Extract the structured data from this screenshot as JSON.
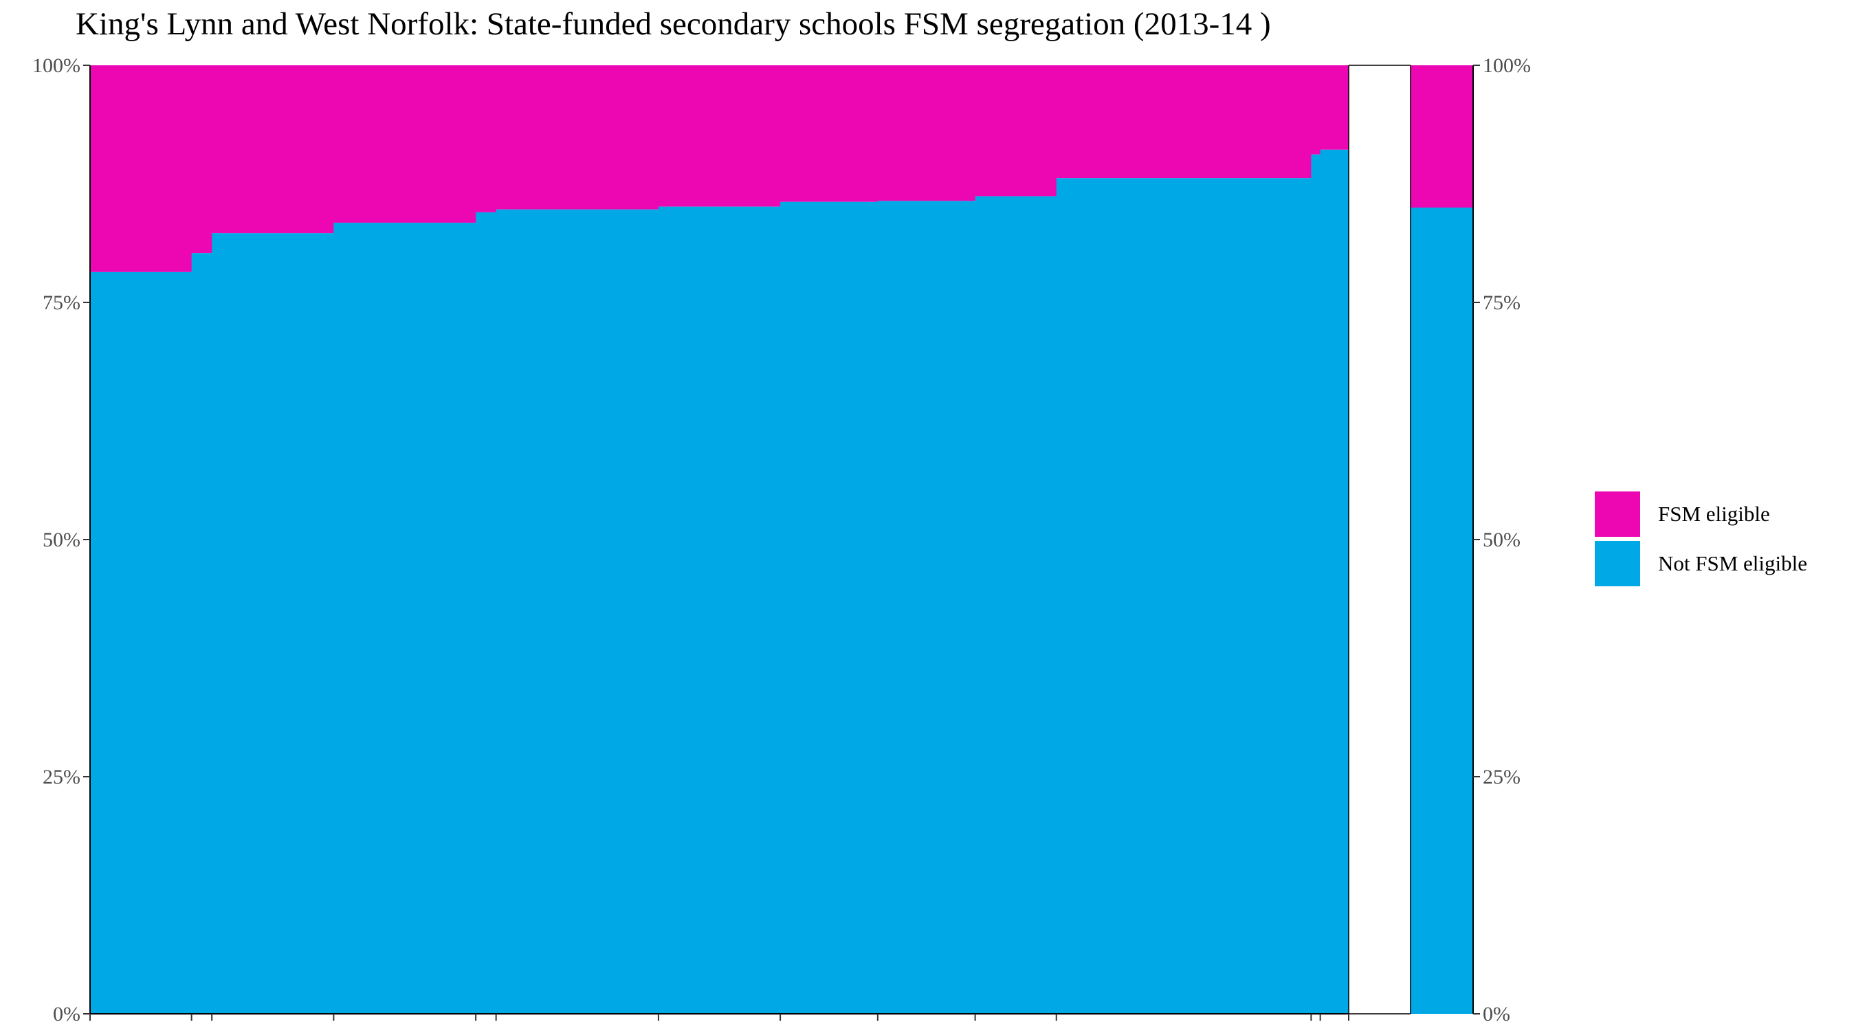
{
  "chart_data": {
    "type": "bar",
    "title": "King's Lynn and West Norfolk: State-funded secondary schools FSM segregation (2013-14 )",
    "xlabel": "",
    "ylabel": "",
    "ylim": [
      0,
      1
    ],
    "y_ticks": [
      "0%",
      "25%",
      "50%",
      "75%",
      "100%"
    ],
    "y_tick_values": [
      0,
      0.25,
      0.5,
      0.75,
      1.0
    ],
    "variable_width": true,
    "colors": {
      "FSM eligible": "#EC07B3",
      "Not FSM eligible": "#00A8E6"
    },
    "legend": {
      "position": "right",
      "entries": [
        "FSM eligible",
        "Not FSM eligible"
      ]
    },
    "schools": {
      "x_range": [
        0,
        124
      ],
      "bars": [
        {
          "start": 0,
          "end": 10,
          "not_fsm": 0.782
        },
        {
          "start": 10,
          "end": 12,
          "not_fsm": 0.802
        },
        {
          "start": 12,
          "end": 24,
          "not_fsm": 0.823
        },
        {
          "start": 24,
          "end": 38,
          "not_fsm": 0.834
        },
        {
          "start": 38,
          "end": 40,
          "not_fsm": 0.845
        },
        {
          "start": 40,
          "end": 56,
          "not_fsm": 0.848
        },
        {
          "start": 56,
          "end": 68,
          "not_fsm": 0.851
        },
        {
          "start": 68,
          "end": 77.6,
          "not_fsm": 0.856
        },
        {
          "start": 77.6,
          "end": 87.2,
          "not_fsm": 0.857
        },
        {
          "start": 87.2,
          "end": 95.2,
          "not_fsm": 0.862
        },
        {
          "start": 95.2,
          "end": 120.3,
          "not_fsm": 0.881
        },
        {
          "start": 120.3,
          "end": 121.2,
          "not_fsm": 0.906
        },
        {
          "start": 121.2,
          "end": 124,
          "not_fsm": 0.911
        }
      ],
      "x_ticks": [
        0,
        10,
        12,
        24,
        38,
        40,
        56,
        68,
        77.6,
        87.2,
        95.2,
        120.3,
        121.2,
        124
      ]
    },
    "overall": {
      "not_fsm": 0.85
    }
  }
}
